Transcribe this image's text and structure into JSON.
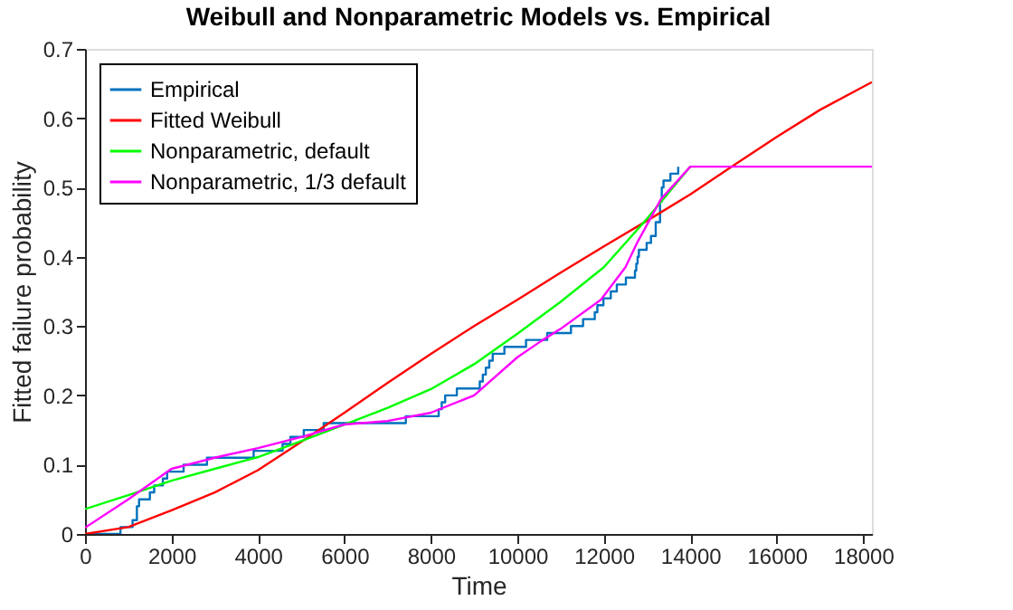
{
  "chart_data": {
    "type": "line",
    "title": "Weibull and Nonparametric Models vs. Empirical",
    "xlabel": "Time",
    "ylabel": "Fitted failure probability",
    "xlim": [
      0,
      18200
    ],
    "ylim": [
      0,
      0.7
    ],
    "xticks": [
      0,
      2000,
      4000,
      6000,
      8000,
      10000,
      12000,
      14000,
      16000,
      18000
    ],
    "yticks": [
      0,
      0.1,
      0.2,
      0.3,
      0.4,
      0.5,
      0.6,
      0.7
    ],
    "grid": false,
    "legend": "top left",
    "series": [
      {
        "name": "Empirical",
        "type": "step",
        "color": "#0072bd",
        "x": [
          0,
          820,
          1100,
          1200,
          1250,
          1500,
          1600,
          1800,
          1900,
          2280,
          2820,
          3900,
          4570,
          4750,
          5060,
          5520,
          7420,
          8180,
          8250,
          8330,
          8600,
          9130,
          9200,
          9270,
          9350,
          9430,
          9700,
          10200,
          10690,
          11240,
          11520,
          11790,
          11850,
          11990,
          12160,
          12300,
          12510,
          12720,
          12750,
          12780,
          12810,
          12990,
          13090,
          13200,
          13300,
          13340,
          13380,
          13540,
          13720
        ],
        "values": [
          0,
          0.01,
          0.02,
          0.04,
          0.05,
          0.06,
          0.07,
          0.08,
          0.09,
          0.1,
          0.11,
          0.12,
          0.13,
          0.14,
          0.15,
          0.16,
          0.17,
          0.18,
          0.19,
          0.2,
          0.21,
          0.22,
          0.23,
          0.24,
          0.25,
          0.26,
          0.27,
          0.28,
          0.29,
          0.3,
          0.31,
          0.32,
          0.33,
          0.34,
          0.35,
          0.36,
          0.37,
          0.38,
          0.39,
          0.4,
          0.41,
          0.42,
          0.43,
          0.45,
          0.48,
          0.5,
          0.51,
          0.52,
          0.53
        ]
      },
      {
        "name": "Fitted Weibull",
        "type": "line",
        "color": "#ff0000",
        "x": [
          0,
          1000,
          2000,
          3000,
          4000,
          5000,
          6000,
          7000,
          8000,
          9000,
          10000,
          11000,
          12000,
          13000,
          14000,
          15000,
          16000,
          17000,
          18200
        ],
        "values": [
          0,
          0.01,
          0.034,
          0.06,
          0.092,
          0.133,
          0.175,
          0.218,
          0.26,
          0.3,
          0.338,
          0.377,
          0.415,
          0.452,
          0.49,
          0.532,
          0.573,
          0.612,
          0.652
        ]
      },
      {
        "name": "Nonparametric, default",
        "type": "line",
        "color": "#00ff00",
        "x": [
          0,
          1000,
          2000,
          3000,
          4000,
          5000,
          6000,
          7000,
          8000,
          9000,
          10000,
          11000,
          12000,
          13000,
          14000
        ],
        "values": [
          0.036,
          0.056,
          0.077,
          0.094,
          0.111,
          0.134,
          0.158,
          0.182,
          0.209,
          0.245,
          0.289,
          0.335,
          0.385,
          0.455,
          0.53
        ]
      },
      {
        "name": "Nonparametric, 1/3 default",
        "type": "line",
        "color": "#ff00ff",
        "x": [
          0,
          1000,
          2000,
          3000,
          4000,
          5000,
          6000,
          7000,
          8000,
          9000,
          10000,
          10540,
          11000,
          11930,
          12500,
          12760,
          13320,
          14000,
          18200
        ],
        "values": [
          0.009,
          0.05,
          0.094,
          0.11,
          0.124,
          0.14,
          0.158,
          0.163,
          0.175,
          0.2,
          0.255,
          0.278,
          0.296,
          0.338,
          0.385,
          0.419,
          0.483,
          0.53,
          0.53
        ]
      }
    ]
  }
}
